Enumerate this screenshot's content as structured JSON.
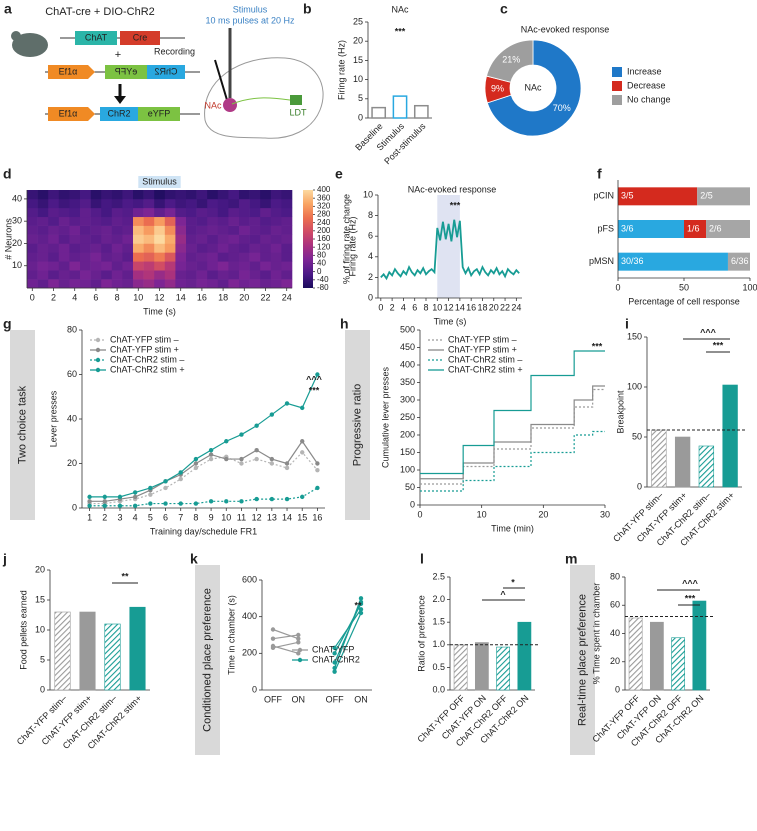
{
  "diagram": {
    "label": "a",
    "title": "ChAT-cre + DIO-ChR2",
    "construct1": [
      "ChAT",
      "Cre"
    ],
    "plus": "+",
    "construct2": [
      "Ef1α",
      "ChR2",
      "eYFP"
    ],
    "construct3": [
      "Ef1α",
      "ChR2",
      "eYFP"
    ],
    "stimulus": "Stimulus",
    "stimulus_detail": "10 ms pulses at 20 Hz",
    "recording": "Recording",
    "regions": [
      "NAc",
      "LDT"
    ]
  },
  "chart_data": [
    {
      "type": "bar",
      "label": "b",
      "title": "NAc",
      "ylabel": "Firing rate (Hz)",
      "categories": [
        "Baseline",
        "Stimulus",
        "Post-stimulus"
      ],
      "values": [
        2.7,
        5.7,
        3.2
      ],
      "colors": [
        "#8c8c8c",
        "#29a8e0",
        "#8c8c8c"
      ],
      "style": "outline",
      "ylim": [
        0,
        25
      ],
      "yticks": [
        0,
        5,
        10,
        15,
        20,
        25
      ],
      "annotations": [
        "***"
      ]
    },
    {
      "type": "pie",
      "label": "c",
      "title": "NAc-evoked response",
      "center_label": "NAc",
      "categories": [
        "Increase",
        "Decrease",
        "No change"
      ],
      "values": [
        70,
        9,
        21
      ],
      "value_labels": [
        "70%",
        "9%",
        "21%"
      ],
      "colors": [
        "#1f78c8",
        "#d42a1e",
        "#9e9e9e"
      ]
    },
    {
      "type": "heatmap",
      "label": "d",
      "ylabel": "# Neurons",
      "xlabel": "Time (s)",
      "shade": [
        10,
        14
      ],
      "shade_label": "Stimulus",
      "clabel": "% of firing rate change",
      "x": [
        0,
        1,
        2,
        3,
        4,
        5,
        6,
        7,
        8,
        9,
        10,
        11,
        12,
        13,
        14,
        15,
        16,
        17,
        18,
        19,
        20,
        21,
        22,
        23,
        24
      ],
      "xlim": [
        -0.5,
        24.5
      ],
      "xticks": [
        0,
        2,
        4,
        6,
        8,
        10,
        12,
        14,
        16,
        18,
        20,
        22,
        24
      ],
      "ylim": [
        0,
        44
      ],
      "yticks": [
        10,
        20,
        30,
        40
      ],
      "zlim": [
        -80,
        400
      ],
      "cticks": [
        -80,
        -40,
        0,
        40,
        80,
        120,
        160,
        200,
        240,
        280,
        320,
        360,
        400
      ],
      "colors": [
        "#1b0c5c",
        "#4b1a87",
        "#7b2595",
        "#a8307f",
        "#cf4a66",
        "#ec6f4f",
        "#f9a463",
        "#fcd9a0"
      ],
      "z": [
        [
          40,
          20,
          60,
          30,
          50,
          40,
          20,
          60,
          40,
          30,
          80,
          100,
          60,
          90,
          40,
          30,
          50,
          40,
          20,
          60,
          40,
          50,
          30,
          40,
          60
        ],
        [
          20,
          40,
          10,
          30,
          20,
          50,
          30,
          10,
          40,
          20,
          120,
          140,
          100,
          130,
          30,
          20,
          40,
          10,
          30,
          20,
          50,
          30,
          10,
          40,
          20
        ],
        [
          30,
          50,
          40,
          20,
          60,
          30,
          40,
          50,
          20,
          40,
          180,
          160,
          200,
          150,
          50,
          30,
          20,
          40,
          60,
          30,
          40,
          20,
          50,
          30,
          40
        ],
        [
          20,
          30,
          10,
          40,
          20,
          30,
          50,
          20,
          30,
          10,
          260,
          240,
          280,
          220,
          60,
          20,
          30,
          40,
          10,
          20,
          30,
          50,
          20,
          30,
          10
        ],
        [
          10,
          30,
          20,
          40,
          10,
          20,
          30,
          10,
          40,
          20,
          340,
          300,
          360,
          320,
          80,
          30,
          10,
          20,
          40,
          20,
          10,
          30,
          20,
          40,
          10
        ],
        [
          30,
          20,
          40,
          10,
          30,
          20,
          10,
          30,
          20,
          40,
          380,
          360,
          400,
          340,
          100,
          20,
          30,
          10,
          30,
          40,
          20,
          10,
          30,
          20,
          30
        ],
        [
          20,
          10,
          30,
          20,
          40,
          10,
          20,
          30,
          10,
          20,
          360,
          320,
          380,
          300,
          80,
          10,
          20,
          30,
          20,
          10,
          40,
          20,
          10,
          30,
          20
        ],
        [
          10,
          20,
          0,
          30,
          10,
          20,
          10,
          0,
          20,
          10,
          300,
          260,
          320,
          240,
          60,
          10,
          0,
          20,
          10,
          30,
          10,
          20,
          0,
          10,
          20
        ],
        [
          0,
          -20,
          10,
          0,
          -10,
          20,
          0,
          -20,
          10,
          0,
          40,
          60,
          20,
          50,
          0,
          -10,
          10,
          0,
          -20,
          10,
          0,
          -10,
          20,
          0,
          -10
        ],
        [
          -20,
          -40,
          -10,
          -30,
          -20,
          0,
          -40,
          -20,
          -30,
          -10,
          -20,
          0,
          -40,
          -10,
          -30,
          -20,
          -40,
          -10,
          -20,
          -30,
          0,
          -20,
          -40,
          -10,
          -20
        ],
        [
          -40,
          -60,
          -30,
          -50,
          -40,
          -20,
          -60,
          -40,
          -50,
          -30,
          -60,
          -40,
          -70,
          -50,
          -40,
          -50,
          -30,
          -60,
          -40,
          -20,
          -50,
          -40,
          -60,
          -30,
          -40
        ]
      ]
    },
    {
      "type": "line",
      "label": "e",
      "title": "NAc-evoked response",
      "ylabel": "Firing rate (Hz)",
      "xlabel": "Time (s)",
      "shade": [
        10,
        14
      ],
      "annotations": [
        "***"
      ],
      "xlim": [
        -0.5,
        25
      ],
      "xticks": [
        0,
        2,
        4,
        6,
        8,
        10,
        12,
        14,
        16,
        18,
        20,
        22,
        24
      ],
      "ylim": [
        0,
        10
      ],
      "yticks": [
        0,
        2,
        4,
        6,
        8,
        10
      ],
      "x": [
        0,
        0.5,
        1,
        1.5,
        2,
        2.5,
        3,
        3.5,
        4,
        4.5,
        5,
        5.5,
        6,
        6.5,
        7,
        7.5,
        8,
        8.5,
        9,
        9.5,
        10,
        10.5,
        11,
        11.5,
        12,
        12.5,
        13,
        13.5,
        14,
        14.5,
        15,
        15.5,
        16,
        16.5,
        17,
        17.5,
        18,
        18.5,
        19,
        19.5,
        20,
        20.5,
        21,
        21.5,
        22,
        22.5,
        23,
        23.5,
        24,
        24.5
      ],
      "series": [
        {
          "color": "#179c94",
          "values": [
            2.0,
            2.3,
            1.9,
            2.5,
            2.2,
            2.8,
            2.4,
            2.1,
            2.6,
            2.3,
            3.0,
            2.5,
            2.2,
            2.7,
            2.4,
            2.9,
            2.3,
            2.6,
            2.8,
            2.5,
            6.8,
            5.6,
            7.4,
            5.7,
            7.2,
            5.5,
            7.6,
            5.9,
            7.5,
            3.0,
            2.4,
            2.9,
            2.2,
            2.6,
            2.8,
            2.3,
            3.0,
            2.5,
            2.2,
            2.7,
            2.4,
            2.9,
            2.3,
            2.6,
            2.1,
            2.8,
            2.5,
            2.3,
            2.7,
            2.4
          ]
        }
      ]
    },
    {
      "type": "hbar",
      "label": "f",
      "xlabel": "Percentage of cell response",
      "categories": [
        "pCIN",
        "pFS",
        "pMSN"
      ],
      "xlim": [
        0,
        100
      ],
      "xticks": [
        0,
        50,
        100
      ],
      "series": [
        {
          "color": "#29a8e0",
          "values": [
            0,
            50,
            83.3
          ],
          "value_labels": [
            null,
            "3/6",
            "30/36"
          ]
        },
        {
          "color": "#d42a1e",
          "values": [
            60,
            16.7,
            0
          ],
          "value_labels": [
            "3/5",
            "1/6",
            null
          ]
        },
        {
          "color": "#a6a6a6",
          "values": [
            40,
            33.3,
            16.7
          ],
          "value_labels": [
            "2/5",
            "2/6",
            "6/36"
          ]
        }
      ]
    },
    {
      "type": "line",
      "label": "g",
      "side_label": "Two choice task",
      "ylabel": "Lever presses",
      "xlabel": "Training day/schedule FR1",
      "markers": true,
      "legend": "upper left",
      "annotations": [
        "^^^",
        "***"
      ],
      "x": [
        1,
        2,
        3,
        4,
        5,
        6,
        7,
        8,
        9,
        10,
        11,
        12,
        13,
        14,
        15,
        16
      ],
      "xlim": [
        0.5,
        16.5
      ],
      "xticks": [
        1,
        2,
        3,
        4,
        5,
        6,
        7,
        8,
        9,
        10,
        11,
        12,
        13,
        14,
        15,
        16
      ],
      "ylim": [
        0,
        80
      ],
      "yticks": [
        0,
        20,
        40,
        60,
        80
      ],
      "series": [
        {
          "name": "ChAT-YFP stim –",
          "color": "#b5b5b5",
          "dash": true,
          "values": [
            2,
            2,
            3,
            4,
            6,
            9,
            13,
            18,
            22,
            23,
            20,
            22,
            20,
            18,
            25,
            17
          ]
        },
        {
          "name": "ChAT-YFP stim +",
          "color": "#8a8a8a",
          "dash": false,
          "values": [
            3,
            3,
            4,
            5,
            8,
            12,
            15,
            20,
            24,
            22,
            22,
            26,
            22,
            20,
            30,
            20
          ]
        },
        {
          "name": "ChAT-ChR2 stim –",
          "color": "#179c94",
          "dash": true,
          "values": [
            1,
            1,
            1,
            1,
            2,
            2,
            2,
            2,
            3,
            3,
            3,
            4,
            4,
            4,
            5,
            9
          ]
        },
        {
          "name": "ChAT-ChR2 stim +",
          "color": "#179c94",
          "dash": false,
          "values": [
            5,
            5,
            5,
            7,
            9,
            12,
            16,
            22,
            26,
            30,
            33,
            37,
            42,
            47,
            45,
            60
          ]
        }
      ]
    },
    {
      "type": "step",
      "label": "h",
      "side_label": "Progressive ratio",
      "ylabel": "Cumulative lever presses",
      "xlabel": "Time (min)",
      "legend": "upper left",
      "annotations": [
        "***"
      ],
      "x": [
        0,
        7,
        12,
        18,
        25,
        28,
        30
      ],
      "xlim": [
        0,
        30
      ],
      "xticks": [
        0,
        10,
        20,
        30
      ],
      "ylim": [
        0,
        500
      ],
      "yticks": [
        0,
        50,
        100,
        150,
        200,
        250,
        300,
        350,
        400,
        450,
        500
      ],
      "series": [
        {
          "name": "ChAT-YFP stim –",
          "color": "#9a9a9a",
          "dash": true,
          "values": [
            60,
            110,
            160,
            220,
            280,
            330,
            330
          ]
        },
        {
          "name": "ChAT-YFP stim +",
          "color": "#8a8a8a",
          "dash": false,
          "values": [
            75,
            120,
            180,
            230,
            300,
            340,
            340
          ]
        },
        {
          "name": "ChAT-ChR2 stim –",
          "color": "#179c94",
          "dash": true,
          "values": [
            40,
            70,
            110,
            150,
            200,
            210,
            210
          ]
        },
        {
          "name": "ChAT-ChR2 stim +",
          "color": "#179c94",
          "dash": false,
          "values": [
            90,
            170,
            270,
            370,
            440,
            440,
            440
          ]
        }
      ]
    },
    {
      "type": "bar",
      "label": "i",
      "ylabel": "Breakpoint",
      "categories": [
        "ChAT-YFP stim–",
        "ChAT-YFP stim+",
        "ChAT-ChR2 stim–",
        "ChAT-ChR2 stim+"
      ],
      "values": [
        57,
        50,
        41,
        102
      ],
      "colors": [
        "#9a9a9a",
        "#9a9a9a",
        "#179c94",
        "#179c94"
      ],
      "hatched": [
        true,
        false,
        true,
        false
      ],
      "reference_line": 57,
      "ylim": [
        0,
        150
      ],
      "yticks": [
        0,
        50,
        100,
        150
      ],
      "annotations": [
        "^^^",
        "***"
      ]
    },
    {
      "type": "bar",
      "label": "j",
      "ylabel": "Food pellets earned",
      "categories": [
        "ChAT-YFP stim–",
        "ChAT-YFP stim+",
        "ChAT-ChR2 stim–",
        "ChAT-ChR2 stim+"
      ],
      "values": [
        13,
        13,
        11,
        13.8
      ],
      "colors": [
        "#9a9a9a",
        "#9a9a9a",
        "#179c94",
        "#179c94"
      ],
      "hatched": [
        true,
        false,
        true,
        false
      ],
      "ylim": [
        0,
        20
      ],
      "yticks": [
        0,
        5,
        10,
        15,
        20
      ],
      "annotations": [
        "**"
      ]
    },
    {
      "type": "paired",
      "label": "k",
      "side_label": "Conditioned place preference",
      "ylabel": "Time in chamber (s)",
      "categories": [
        "OFF",
        "ON",
        "OFF",
        "ON"
      ],
      "legend": "lower right",
      "annotations": [
        "**"
      ],
      "ylim": [
        0,
        600
      ],
      "yticks": [
        0,
        200,
        400,
        600
      ],
      "series": [
        {
          "name": "ChAT-YFP",
          "color": "#9a9a9a",
          "values": [
            [
              280,
              300
            ],
            [
              230,
              260
            ],
            [
              240,
              200
            ],
            [
              330,
              280
            ]
          ]
        },
        {
          "name": "ChAT-ChR2",
          "color": "#179c94",
          "values": [
            [
              230,
              440
            ],
            [
              200,
              470
            ],
            [
              150,
              480
            ],
            [
              120,
              500
            ],
            [
              100,
              420
            ]
          ]
        }
      ]
    },
    {
      "type": "bar",
      "label": "l",
      "ylabel": "Ratio of preference",
      "categories": [
        "ChAT-YFP OFF",
        "ChAT-YFP ON",
        "ChAT-ChR2 OFF",
        "ChAT-ChR2 ON"
      ],
      "values": [
        1.0,
        1.05,
        0.95,
        1.5
      ],
      "colors": [
        "#9a9a9a",
        "#9a9a9a",
        "#179c94",
        "#179c94"
      ],
      "hatched": [
        true,
        false,
        true,
        false
      ],
      "reference_line": 1,
      "ylim": [
        0,
        2.5
      ],
      "yticks": [
        {
          "value": 0,
          "label": "0.0"
        },
        0.5,
        {
          "value": 1,
          "label": "1.0"
        },
        1.5,
        {
          "value": 2,
          "label": "2.0"
        },
        2.5
      ],
      "annotations": [
        "*",
        "^"
      ]
    },
    {
      "type": "bar",
      "label": "m",
      "side_label": "Real-time place preference",
      "ylabel": "% Time spent in chamber",
      "categories": [
        "ChAT-YFP OFF",
        "ChAT-YFP ON",
        "ChAT-ChR2 OFF",
        "ChAT-ChR2 ON"
      ],
      "values": [
        51,
        48,
        37,
        63
      ],
      "colors": [
        "#9a9a9a",
        "#9a9a9a",
        "#179c94",
        "#179c94"
      ],
      "hatched": [
        true,
        false,
        true,
        false
      ],
      "reference_line": 52,
      "ylim": [
        0,
        80
      ],
      "yticks": [
        0,
        20,
        40,
        60,
        80
      ],
      "annotations": [
        "^^^",
        "***"
      ]
    }
  ]
}
